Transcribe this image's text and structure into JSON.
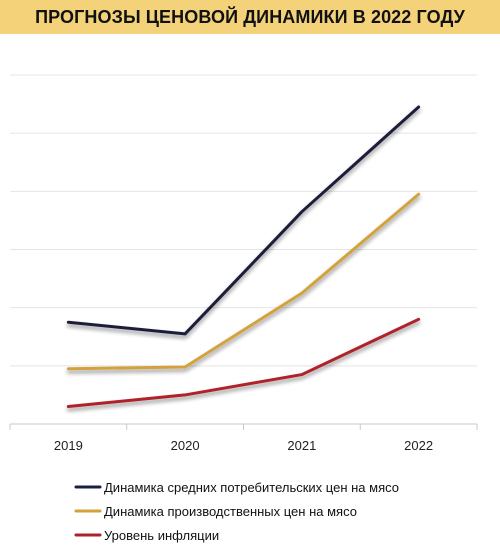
{
  "title": "ПРОГНОЗЫ ЦЕНОВОЙ ДИНАМИКИ В 2022 ГОДУ",
  "chart_data": {
    "type": "line",
    "title": "ПРОГНОЗЫ ЦЕНОВОЙ ДИНАМИКИ В 2022 ГОДУ",
    "xlabel": "",
    "ylabel": "",
    "categories": [
      "2019",
      "2020",
      "2021",
      "2022"
    ],
    "ylim": [
      0,
      6
    ],
    "y_tick_labels_shown": false,
    "grid": true,
    "legend_position": "bottom",
    "series": [
      {
        "name": "Динамика средних потребительских цен на мясо",
        "color": "#1b1f3b",
        "values": [
          1.75,
          1.55,
          3.65,
          5.45
        ]
      },
      {
        "name": "Динамика производственных цен на мясо",
        "color": "#d4a23c",
        "values": [
          0.95,
          0.98,
          2.25,
          3.95
        ]
      },
      {
        "name": "Уровень инфляции",
        "color": "#b0202a",
        "values": [
          0.3,
          0.5,
          0.85,
          1.8
        ]
      }
    ]
  }
}
